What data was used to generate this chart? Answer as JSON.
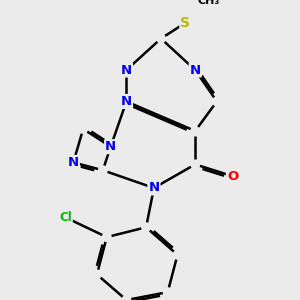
{
  "background_color": "#ebebeb",
  "bond_color": "#000000",
  "bond_width": 1.8,
  "dbl_sep": 0.08,
  "atom_colors": {
    "N": "#0000ee",
    "O": "#ff0000",
    "S": "#bbbb00",
    "Cl": "#00bb00",
    "C": "#000000"
  },
  "font_size": 9.5
}
